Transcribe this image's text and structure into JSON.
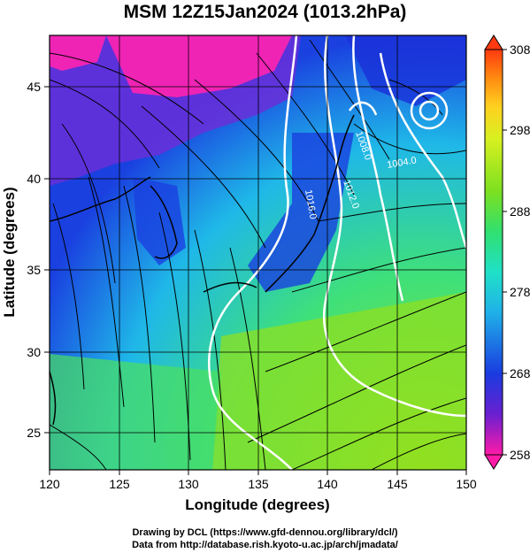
{
  "title": "MSM 12Z15Jan2024 (1013.2hPa)",
  "xlabel": "Longitude (degrees)",
  "ylabel": "Latitude  (degrees)",
  "x_ticks": [
    "120",
    "125",
    "130",
    "135",
    "140",
    "145",
    "150"
  ],
  "y_ticks": [
    "25",
    "30",
    "35",
    "40",
    "45"
  ],
  "colorbar": {
    "ticks": [
      "308",
      "298",
      "288",
      "278",
      "268",
      "258"
    ],
    "range": [
      258,
      308
    ],
    "colors": [
      "#ff1aa8",
      "#6a1fd0",
      "#1a3be0",
      "#1fb0e8",
      "#20e0c8",
      "#30e070",
      "#7ce020",
      "#d8f020",
      "#ffd020",
      "#ff8a10",
      "#ff3a10"
    ]
  },
  "contours": [
    {
      "label": "1016.0"
    },
    {
      "label": "1012.0"
    },
    {
      "label": "1008.0"
    },
    {
      "label": "1004.0"
    }
  ],
  "footer": {
    "line1": "Drawing by DCL (https://www.gfd-dennou.org/library/dcl/)",
    "line2": "Data from http://database.rish.kyoto-u.ac.jp/arch/jmadata/"
  },
  "chart_data": {
    "type": "heatmap",
    "title": "MSM 12Z15Jan2024 (1013.2hPa)",
    "xlabel": "Longitude (degrees)",
    "ylabel": "Latitude  (degrees)",
    "xlim": [
      120,
      150
    ],
    "ylim": [
      22.4,
      47.6
    ],
    "colorbar_range": [
      258,
      308
    ],
    "contour_labels": [
      "1016.0",
      "1012.0",
      "1008.0",
      "1004.0"
    ],
    "streamlines": "yes"
  }
}
